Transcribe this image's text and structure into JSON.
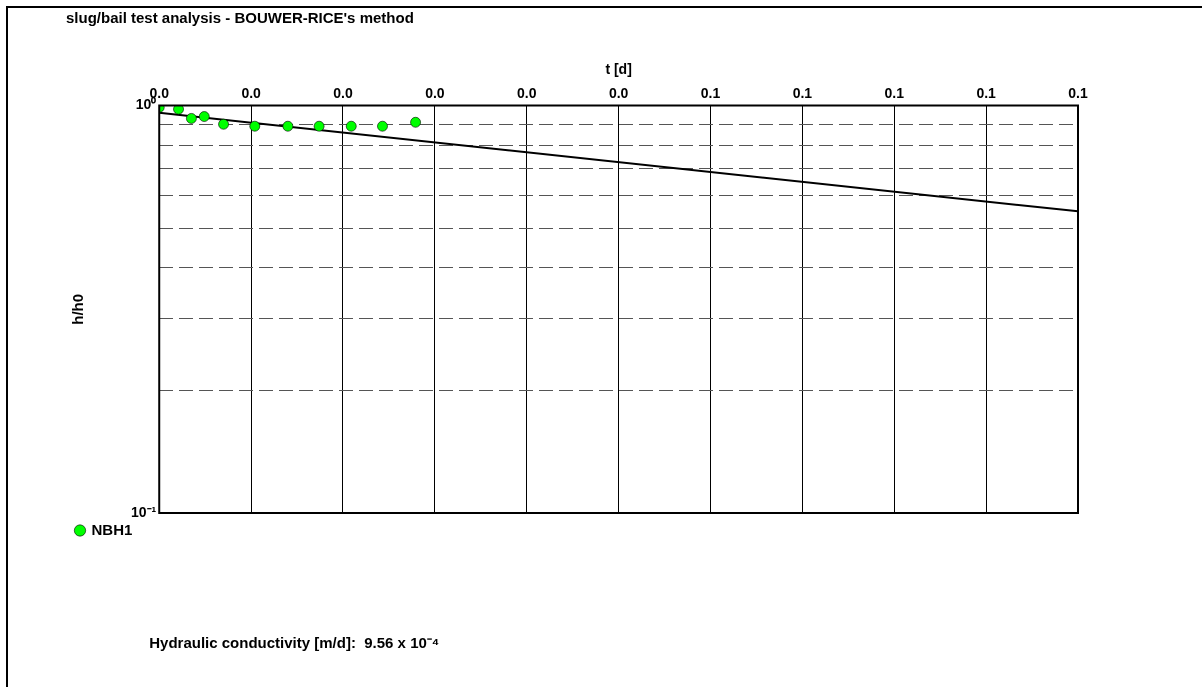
{
  "chart_data": {
    "type": "scatter",
    "title": "slug/bail test analysis - BOUWER-RICE's method",
    "xlabel": "t [d]",
    "ylabel": "h/h0",
    "xlim": [
      0,
      0.1
    ],
    "xticks": [
      {
        "value": 0,
        "label": "0.0"
      },
      {
        "value": 0.01,
        "label": "0.0"
      },
      {
        "value": 0.02,
        "label": "0.0"
      },
      {
        "value": 0.03,
        "label": "0.0"
      },
      {
        "value": 0.04,
        "label": "0.0"
      },
      {
        "value": 0.05,
        "label": "0.0"
      },
      {
        "value": 0.06,
        "label": "0.1"
      },
      {
        "value": 0.07,
        "label": "0.1"
      },
      {
        "value": 0.08,
        "label": "0.1"
      },
      {
        "value": 0.09,
        "label": "0.1"
      },
      {
        "value": 0.1,
        "label": "0.1"
      }
    ],
    "ylim": [
      0.1,
      1
    ],
    "yticks": [
      {
        "value": 0.1,
        "label": "10⁻¹"
      },
      {
        "value": 0.2,
        "label": null
      },
      {
        "value": 0.3,
        "label": null
      },
      {
        "value": 0.4,
        "label": null
      },
      {
        "value": 0.5,
        "label": null
      },
      {
        "value": 0.6,
        "label": null
      },
      {
        "value": 0.7,
        "label": null
      },
      {
        "value": 0.8,
        "label": null
      },
      {
        "value": 0.9,
        "label": null
      },
      {
        "value": 1,
        "label": "10⁰"
      }
    ],
    "log": "y",
    "grid": true,
    "legend": "bottom left",
    "marker": "circle",
    "series": [
      {
        "name": "NBH1",
        "color": "#00ff00",
        "x": [
          0,
          0.0021,
          0.0035,
          0.0049,
          0.007,
          0.0104,
          0.014,
          0.0174,
          0.0209,
          0.0243,
          0.0279
        ],
        "values": [
          0.99,
          0.98,
          0.93,
          0.94,
          0.9,
          0.89,
          0.89,
          0.89,
          0.89,
          0.89,
          0.91
        ]
      },
      {
        "type": "line",
        "color": "#000000",
        "marker": "none",
        "x": [
          0,
          0.1
        ],
        "values": [
          0.96,
          0.55
        ]
      }
    ],
    "annotations": [
      "Hydraulic conductivity [m/d]:  9.56 x 10⁻⁴"
    ]
  }
}
